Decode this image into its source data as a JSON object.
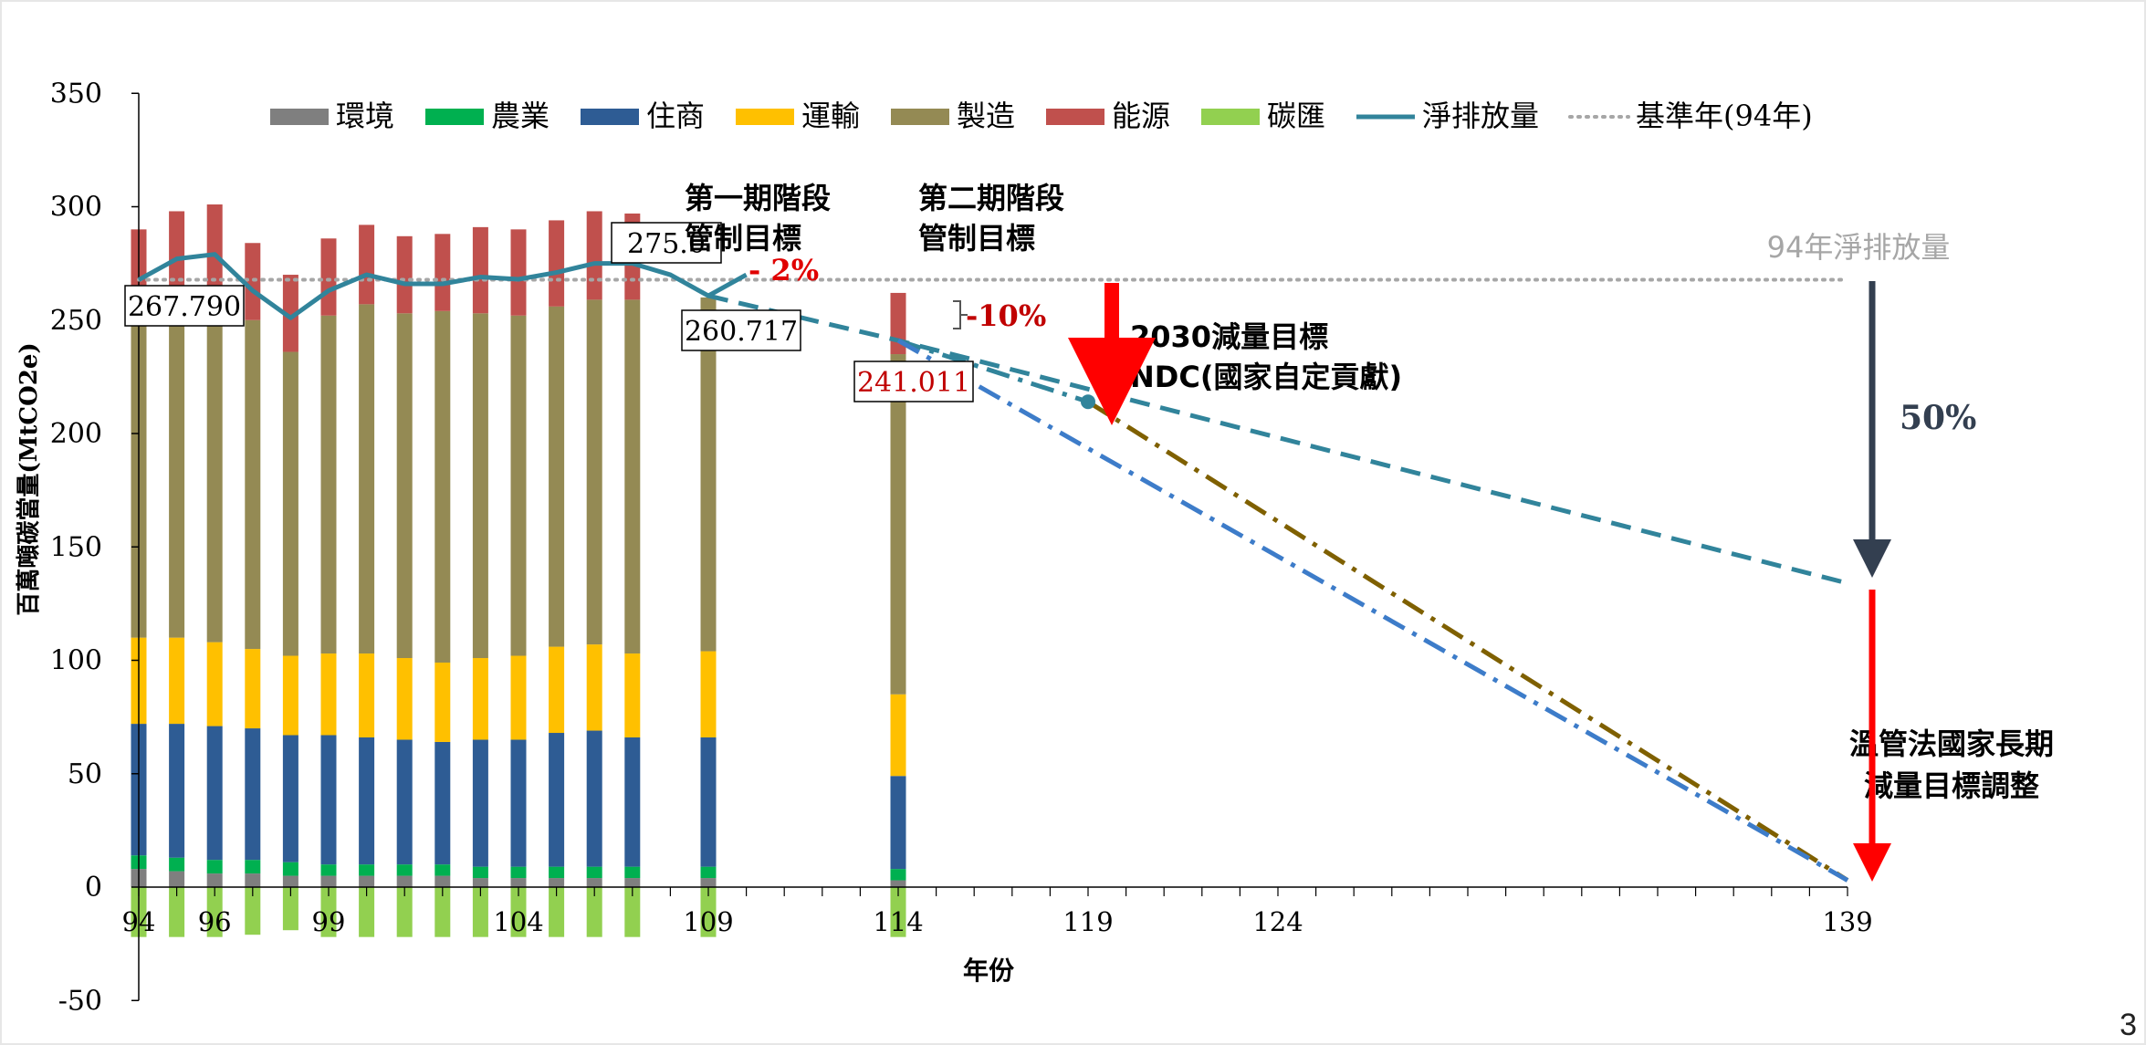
{
  "chart_data": {
    "type": "bar",
    "stacked": true,
    "ylabel": "百萬噸碳當量(MtCO2e)",
    "xlabel": "年份",
    "ylim": [
      -50,
      350
    ],
    "yticks": [
      350,
      300,
      250,
      200,
      150,
      100,
      50,
      0,
      -50
    ],
    "xlim": [
      94,
      139
    ],
    "xticks": [
      94,
      96,
      99,
      104,
      109,
      114,
      119,
      124,
      139
    ],
    "grid": false,
    "legend_position": "top",
    "categories": [
      "94",
      "95",
      "96",
      "97",
      "98",
      "99",
      "100",
      "101",
      "102",
      "103",
      "104",
      "105",
      "106",
      "107",
      "109",
      "114"
    ],
    "series": [
      {
        "name": "環境",
        "color": "#7f7f7f",
        "values": [
          8,
          7,
          6,
          6,
          5,
          5,
          5,
          5,
          5,
          4,
          4,
          4,
          4,
          4,
          4,
          3
        ]
      },
      {
        "name": "農業",
        "color": "#00b050",
        "values": [
          6,
          6,
          6,
          6,
          6,
          5,
          5,
          5,
          5,
          5,
          5,
          5,
          5,
          5,
          5,
          5
        ]
      },
      {
        "name": "住商",
        "color": "#2e5c94",
        "values": [
          58,
          59,
          59,
          58,
          56,
          57,
          56,
          55,
          54,
          56,
          56,
          59,
          60,
          57,
          57,
          41
        ]
      },
      {
        "name": "運輸",
        "color": "#ffc000",
        "values": [
          38,
          38,
          37,
          35,
          35,
          36,
          37,
          36,
          35,
          36,
          37,
          38,
          38,
          37,
          38,
          36
        ]
      },
      {
        "name": "製造",
        "color": "#948a54",
        "values": [
          140,
          140,
          142,
          145,
          134,
          149,
          154,
          152,
          155,
          152,
          150,
          150,
          152,
          156,
          156,
          150
        ]
      },
      {
        "name": "能源",
        "color": "#c0504d",
        "values": [
          40,
          48,
          51,
          34,
          34,
          34,
          35,
          34,
          34,
          38,
          38,
          38,
          39,
          38,
          0,
          27
        ]
      },
      {
        "name": "碳匯",
        "color": "#92d050",
        "values": [
          -22,
          -22,
          -22,
          -21,
          -19,
          -22,
          -22,
          -22,
          -22,
          -22,
          -22,
          -22,
          -22,
          -22,
          -22,
          -22
        ]
      }
    ],
    "net_emissions": {
      "name": "淨排放量",
      "color": "#31849b",
      "x": [
        94,
        95,
        96,
        97,
        98,
        99,
        100,
        101,
        102,
        103,
        104,
        105,
        106,
        107,
        108,
        109,
        110,
        114
      ],
      "y": [
        267.79,
        277,
        279,
        263,
        251,
        263,
        270,
        266,
        266,
        269,
        268,
        271,
        275,
        275.0,
        270,
        260.717,
        270,
        241.011
      ]
    },
    "baseline": {
      "name": "基準年(94年)",
      "y": 267.79,
      "color": "#a6a6a6"
    },
    "projections": [
      {
        "x": [
          109,
          114,
          139
        ],
        "y": [
          260.717,
          241.011,
          134
        ],
        "color": "#31849b",
        "style": "dash"
      },
      {
        "x": [
          114,
          119
        ],
        "y": [
          241.011,
          214
        ],
        "color": "#31849b",
        "style": "dash-dot"
      },
      {
        "x": [
          119,
          139
        ],
        "y": [
          214,
          3
        ],
        "color": "#7f6000",
        "style": "dash-dot"
      },
      {
        "x": [
          114,
          139
        ],
        "y": [
          241.011,
          3
        ],
        "color": "#3d7cc9",
        "style": "dash-dot"
      }
    ],
    "ndc_point": {
      "x": 119,
      "y": 214
    },
    "value_labels": [
      "267.790",
      "275.0",
      "260.717",
      "241.011"
    ],
    "annotations": {
      "phase1": "第一期階段\n管制目標",
      "phase1_change": "- 2%",
      "phase2": "第二期階段\n管制目標",
      "phase2_change": "-10%",
      "ndc": "2030減量目標\nNDC(國家自定貢獻)",
      "baseline_label": "94年淨排放量",
      "fifty": "50%",
      "long_term": "溫管法國家長期\n減量目標調整"
    }
  },
  "page_number": "3"
}
